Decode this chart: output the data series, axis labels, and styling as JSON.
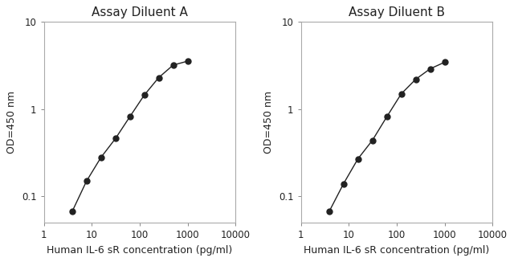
{
  "title_A": "Assay Diluent A",
  "title_B": "Assay Diluent B",
  "xlabel": "Human IL-6 sR concentration (pg/ml)",
  "ylabel": "OD=450 nm",
  "x_A": [
    3.9,
    7.8,
    15.6,
    31.25,
    62.5,
    125,
    250,
    500,
    1000
  ],
  "y_A": [
    0.067,
    0.15,
    0.28,
    0.46,
    0.82,
    1.45,
    2.3,
    3.2,
    3.55
  ],
  "x_B": [
    3.9,
    7.8,
    15.6,
    31.25,
    62.5,
    125,
    250,
    500,
    1000
  ],
  "y_B": [
    0.067,
    0.14,
    0.27,
    0.44,
    0.82,
    1.5,
    2.2,
    2.9,
    3.45
  ],
  "xlim": [
    1,
    10000
  ],
  "ylim": [
    0.05,
    10
  ],
  "xticks": [
    1,
    10,
    100,
    1000,
    10000
  ],
  "yticks": [
    0.1,
    1,
    10
  ],
  "line_color": "#222222",
  "marker": "o",
  "markersize": 5,
  "bg_color": "#ffffff",
  "title_fontsize": 11,
  "label_fontsize": 9,
  "tick_fontsize": 8.5
}
